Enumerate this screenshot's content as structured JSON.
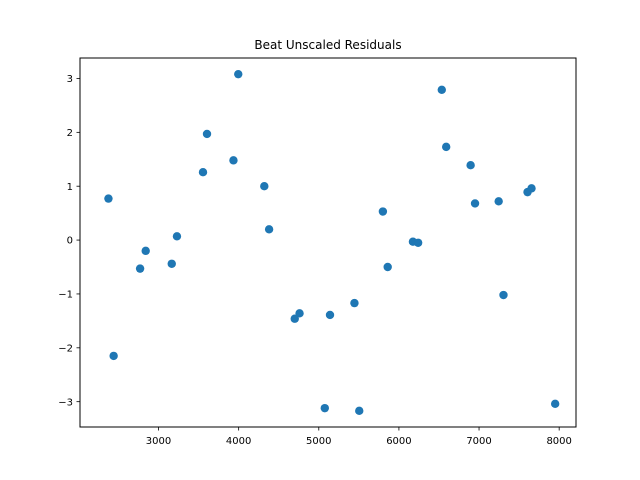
{
  "chart_data": {
    "type": "scatter",
    "title": "Beat Unscaled Residuals",
    "xlabel": "",
    "ylabel": "",
    "xlim": [
      2020,
      8210
    ],
    "ylim": [
      -3.47,
      3.38
    ],
    "xticks": [
      3000,
      4000,
      5000,
      6000,
      7000,
      8000
    ],
    "xtick_labels": [
      "3000",
      "4000",
      "5000",
      "6000",
      "7000",
      "8000"
    ],
    "yticks": [
      -3,
      -2,
      -1,
      0,
      1,
      2,
      3
    ],
    "ytick_labels": [
      "−3",
      "−2",
      "−1",
      "0",
      "1",
      "2",
      "3"
    ],
    "grid": false,
    "color": "#1f77b4",
    "points": [
      {
        "x": 2375,
        "y": 0.77
      },
      {
        "x": 2440,
        "y": -2.15
      },
      {
        "x": 2770,
        "y": -0.53
      },
      {
        "x": 2840,
        "y": -0.2
      },
      {
        "x": 3165,
        "y": -0.44
      },
      {
        "x": 3230,
        "y": 0.07
      },
      {
        "x": 3555,
        "y": 1.26
      },
      {
        "x": 3605,
        "y": 1.97
      },
      {
        "x": 3935,
        "y": 1.48
      },
      {
        "x": 3995,
        "y": 3.08
      },
      {
        "x": 4320,
        "y": 1.0
      },
      {
        "x": 4380,
        "y": 0.2
      },
      {
        "x": 4700,
        "y": -1.46
      },
      {
        "x": 4760,
        "y": -1.36
      },
      {
        "x": 5075,
        "y": -3.12
      },
      {
        "x": 5140,
        "y": -1.39
      },
      {
        "x": 5445,
        "y": -1.17
      },
      {
        "x": 5505,
        "y": -3.17
      },
      {
        "x": 5800,
        "y": 0.53
      },
      {
        "x": 5860,
        "y": -0.5
      },
      {
        "x": 6175,
        "y": -0.03
      },
      {
        "x": 6240,
        "y": -0.05
      },
      {
        "x": 6535,
        "y": 2.79
      },
      {
        "x": 6590,
        "y": 1.73
      },
      {
        "x": 6895,
        "y": 1.39
      },
      {
        "x": 6950,
        "y": 0.68
      },
      {
        "x": 7245,
        "y": 0.72
      },
      {
        "x": 7305,
        "y": -1.02
      },
      {
        "x": 7605,
        "y": 0.89
      },
      {
        "x": 7655,
        "y": 0.96
      },
      {
        "x": 7950,
        "y": -3.04
      }
    ]
  }
}
